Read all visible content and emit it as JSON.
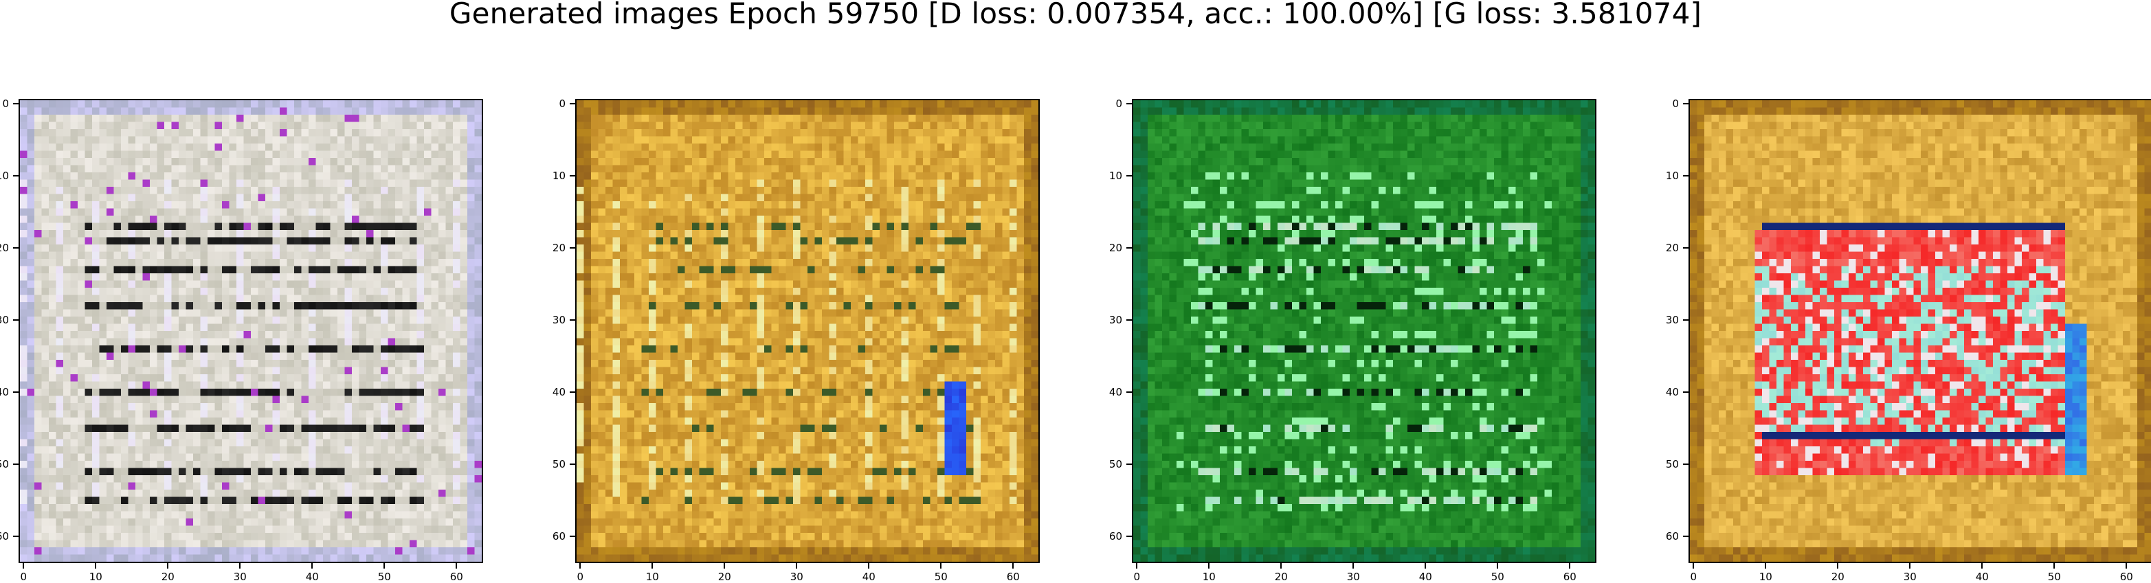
{
  "figure": {
    "title": "Generated images Epoch 59750 [D loss: 0.007354, acc.: 100.00%] [G loss: 3.581074]"
  },
  "images": [
    {
      "tint": "grey-lavender",
      "base_color": "#c9c7b8",
      "accent_color": "#e6d8ec"
    },
    {
      "tint": "amber-ochre",
      "base_color": "#c99a35",
      "accent_color": "#f0c05a"
    },
    {
      "tint": "green",
      "base_color": "#1e8a2a",
      "accent_color": "#55e0c8"
    },
    {
      "tint": "amber-red-cyan",
      "base_color": "#c99a35",
      "accent_color": "#ff2a2a"
    }
  ],
  "axis": {
    "xticks": [
      "0",
      "10",
      "20",
      "30",
      "40",
      "50",
      "60"
    ],
    "yticks": [
      "0",
      "10",
      "20",
      "30",
      "40",
      "50",
      "60"
    ],
    "range": [
      0,
      64
    ]
  }
}
